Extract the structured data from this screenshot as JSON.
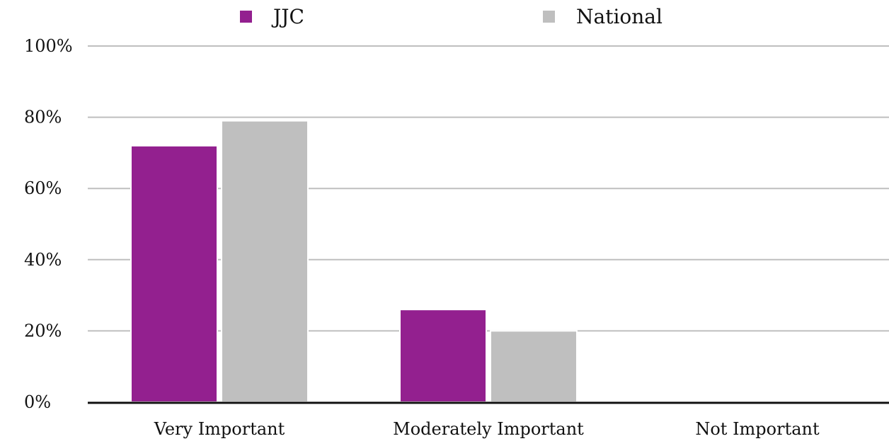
{
  "colors": {
    "jjc": "#93208F",
    "national": "#BFBFBF",
    "gridline": "#BFBFBF",
    "axis": "#111111"
  },
  "chart_data": {
    "type": "bar",
    "categories": [
      "Very Important",
      "Moderately Important",
      "Not Important"
    ],
    "series": [
      {
        "name": "JJC",
        "values": [
          72,
          26,
          0
        ]
      },
      {
        "name": "National",
        "values": [
          79,
          20,
          0
        ]
      }
    ],
    "ylim": [
      0,
      100
    ],
    "yticks": [
      0,
      20,
      40,
      60,
      80,
      100
    ],
    "ytick_labels": [
      "0%",
      "20%",
      "40%",
      "60%",
      "80%",
      "100%"
    ],
    "grid": true,
    "legend": "top-center"
  }
}
